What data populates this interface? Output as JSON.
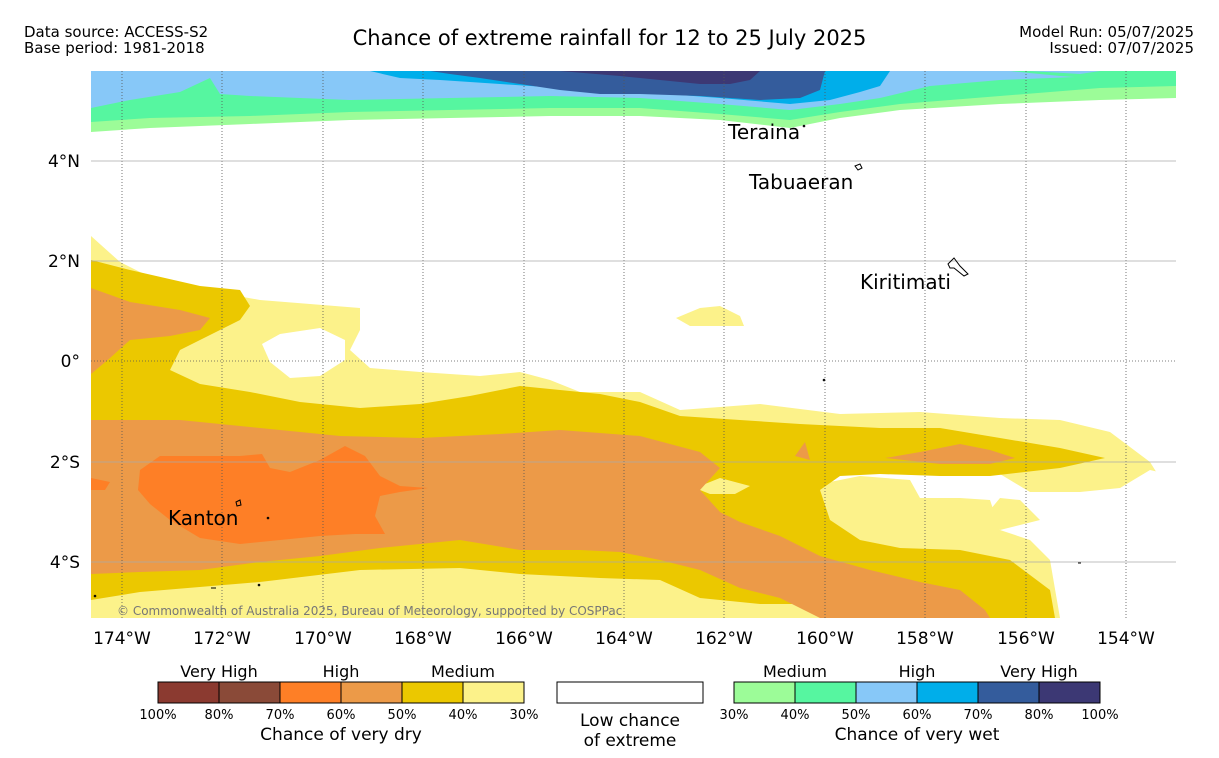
{
  "header": {
    "data_source": "Data source: ACCESS-S2",
    "base_period": "Base period: 1981-2018",
    "title": "Chance of extreme rainfall for 12 to 25 July 2025",
    "model_run": "Model Run: 05/07/2025",
    "issued": "Issued: 07/07/2025"
  },
  "map": {
    "places": [
      {
        "name": "Teraina"
      },
      {
        "name": "Tabuaeran"
      },
      {
        "name": "Kiritimati"
      },
      {
        "name": "Kanton"
      }
    ],
    "lat_labels": [
      "4°N",
      "2°N",
      "0°",
      "2°S",
      "4°S"
    ],
    "lon_labels": [
      "174°W",
      "172°W",
      "170°W",
      "168°W",
      "166°W",
      "164°W",
      "162°W",
      "160°W",
      "158°W",
      "156°W",
      "154°W"
    ],
    "copyright": "© Commonwealth of Australia 2025, Bureau of Meteorology, supported by COSPPac"
  },
  "legend": {
    "dry": {
      "groups": [
        "Very High",
        "High",
        "Medium"
      ],
      "colors": [
        "#8b3a30",
        "#8a4a38",
        "#fe7f26",
        "#ec9a48",
        "#ebc800",
        "#fcf28a"
      ],
      "ticks": [
        "100%",
        "80%",
        "70%",
        "60%",
        "50%",
        "40%",
        "30%"
      ],
      "title": "Chance of very dry"
    },
    "low": {
      "line1": "Low chance",
      "line2": "of extreme"
    },
    "wet": {
      "groups": [
        "Medium",
        "High",
        "Very High"
      ],
      "colors": [
        "#9cfc98",
        "#56f6a0",
        "#87c8f8",
        "#00aeea",
        "#345c9c",
        "#3c3874"
      ],
      "ticks": [
        "30%",
        "40%",
        "50%",
        "60%",
        "70%",
        "80%",
        "100%"
      ],
      "title": "Chance of very wet"
    }
  }
}
